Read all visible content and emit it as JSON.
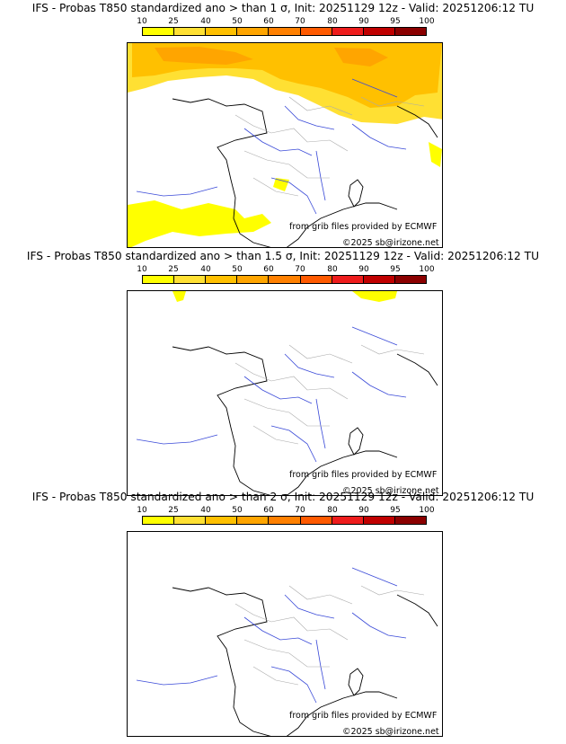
{
  "legend": {
    "ticks": [
      "10",
      "25",
      "40",
      "50",
      "60",
      "70",
      "80",
      "90",
      "95",
      "100"
    ],
    "colors": [
      "#ffff00",
      "#ffe033",
      "#ffc000",
      "#ffa500",
      "#ff8000",
      "#ff5a00",
      "#ee1c1c",
      "#c00000",
      "#8b0000"
    ]
  },
  "panels": [
    {
      "title": "IFS - Probas T850  standardized ano > than 1 σ, Init: 20251129 12z - Valid: 20251206:12 TU",
      "source": "from grib files provided by ECMWF",
      "copyright": "©2025 sb@irizone.net"
    },
    {
      "title": "IFS - Probas T850  standardized ano > than 1.5 σ, Init: 20251129 12z - Valid: 20251206:12 TU",
      "source": "from grib files provided by ECMWF",
      "copyright": "©2025 sb@irizone.net"
    },
    {
      "title": "IFS - Probas T850  standardized ano > than 2 σ, Init: 20251129 12z - Valid: 20251206:12 TU",
      "source": "from grib files provided by ECMWF",
      "copyright": "©2025 sb@irizone.net"
    }
  ]
}
